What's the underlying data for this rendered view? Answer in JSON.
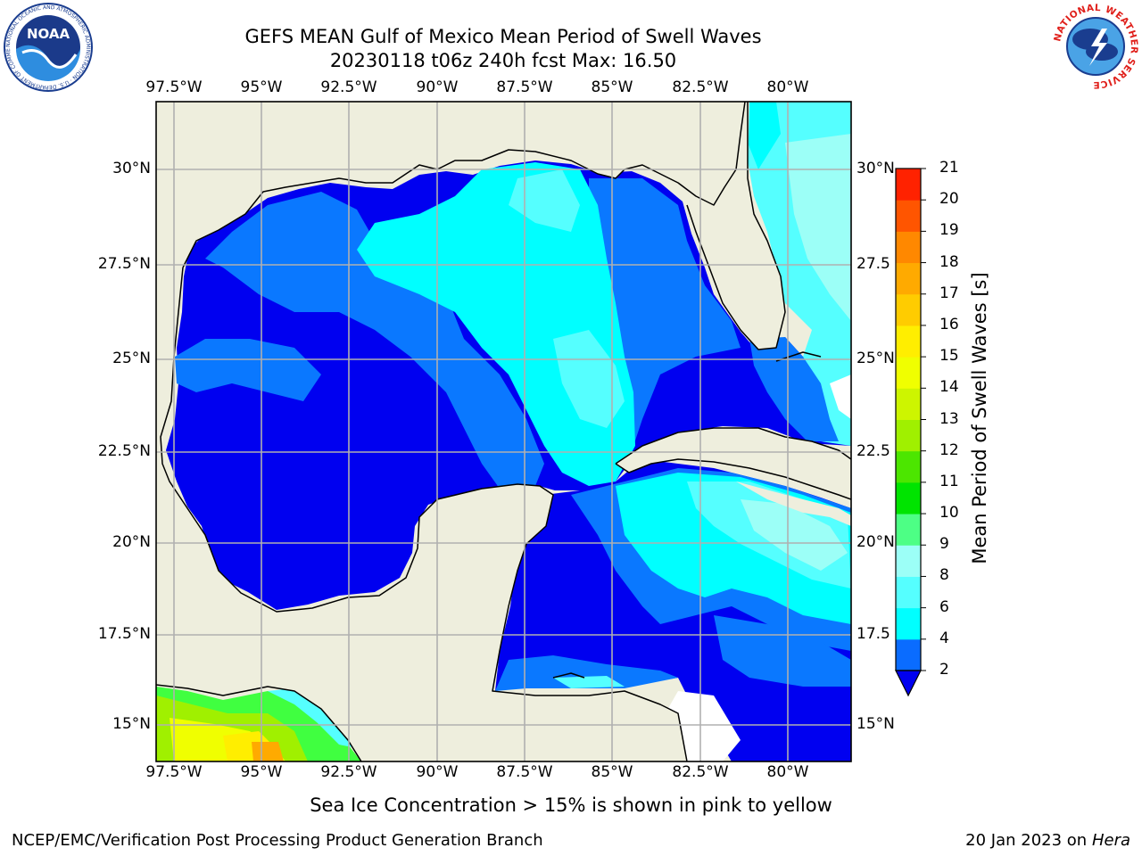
{
  "header": {
    "title_line1": "GEFS MEAN Gulf of Mexico Mean Period of Swell Waves",
    "title_line2": "20230118 t06z 240h fcst   Max: 16.50",
    "left_logo_text": "NOAA",
    "left_logo_ring": "NATIONAL OCEANIC AND ATMOSPHERIC ADMINISTRATION · U.S. DEPARTMENT OF COMMERCE",
    "right_logo_ring": "NATIONAL WEATHER SERVICE"
  },
  "map": {
    "lon_labels": [
      "97.5°W",
      "95°W",
      "92.5°W",
      "90°W",
      "87.5°W",
      "85°W",
      "82.5°W",
      "80°W"
    ],
    "lat_labels_left": [
      "30°N",
      "27.5°N",
      "25°N",
      "22.5°N",
      "20°N",
      "17.5°N",
      "15°N"
    ],
    "lat_labels_right": [
      "30°N",
      "27.5",
      "25°N",
      "22.5",
      "20°N",
      "17.5",
      "15°N"
    ],
    "colors": {
      "land": "#eeeedd",
      "gridline": "#b0b0b0",
      "deep_blue": "#0000f0",
      "mid_blue": "#0a78ff",
      "cyan": "#00ffff",
      "light_cyan": "#55ffff",
      "pale_cyan": "#9cfff7"
    }
  },
  "colorbar": {
    "label": "Mean Period of Swell Waves [s]",
    "ticks": [
      "2",
      "4",
      "6",
      "8",
      "9",
      "10",
      "11",
      "12",
      "13",
      "14",
      "15",
      "16",
      "17",
      "18",
      "19",
      "20",
      "21"
    ],
    "colors": [
      "#0a6cff",
      "#00ffff",
      "#55ffff",
      "#9cfff7",
      "#4dff85",
      "#00e400",
      "#4ce600",
      "#a0f000",
      "#cdf500",
      "#f0ff00",
      "#ffee00",
      "#ffcc00",
      "#ffaa00",
      "#ff8800",
      "#ff5500",
      "#ff2200"
    ],
    "extend_color": "#0000f0"
  },
  "footer": {
    "note": "Sea Ice Concentration > 15% is shown in pink to yellow",
    "left": "NCEP/EMC/Verification Post Processing Product Generation Branch",
    "right_date": "20 Jan 2023 on",
    "right_host": "Hera"
  }
}
